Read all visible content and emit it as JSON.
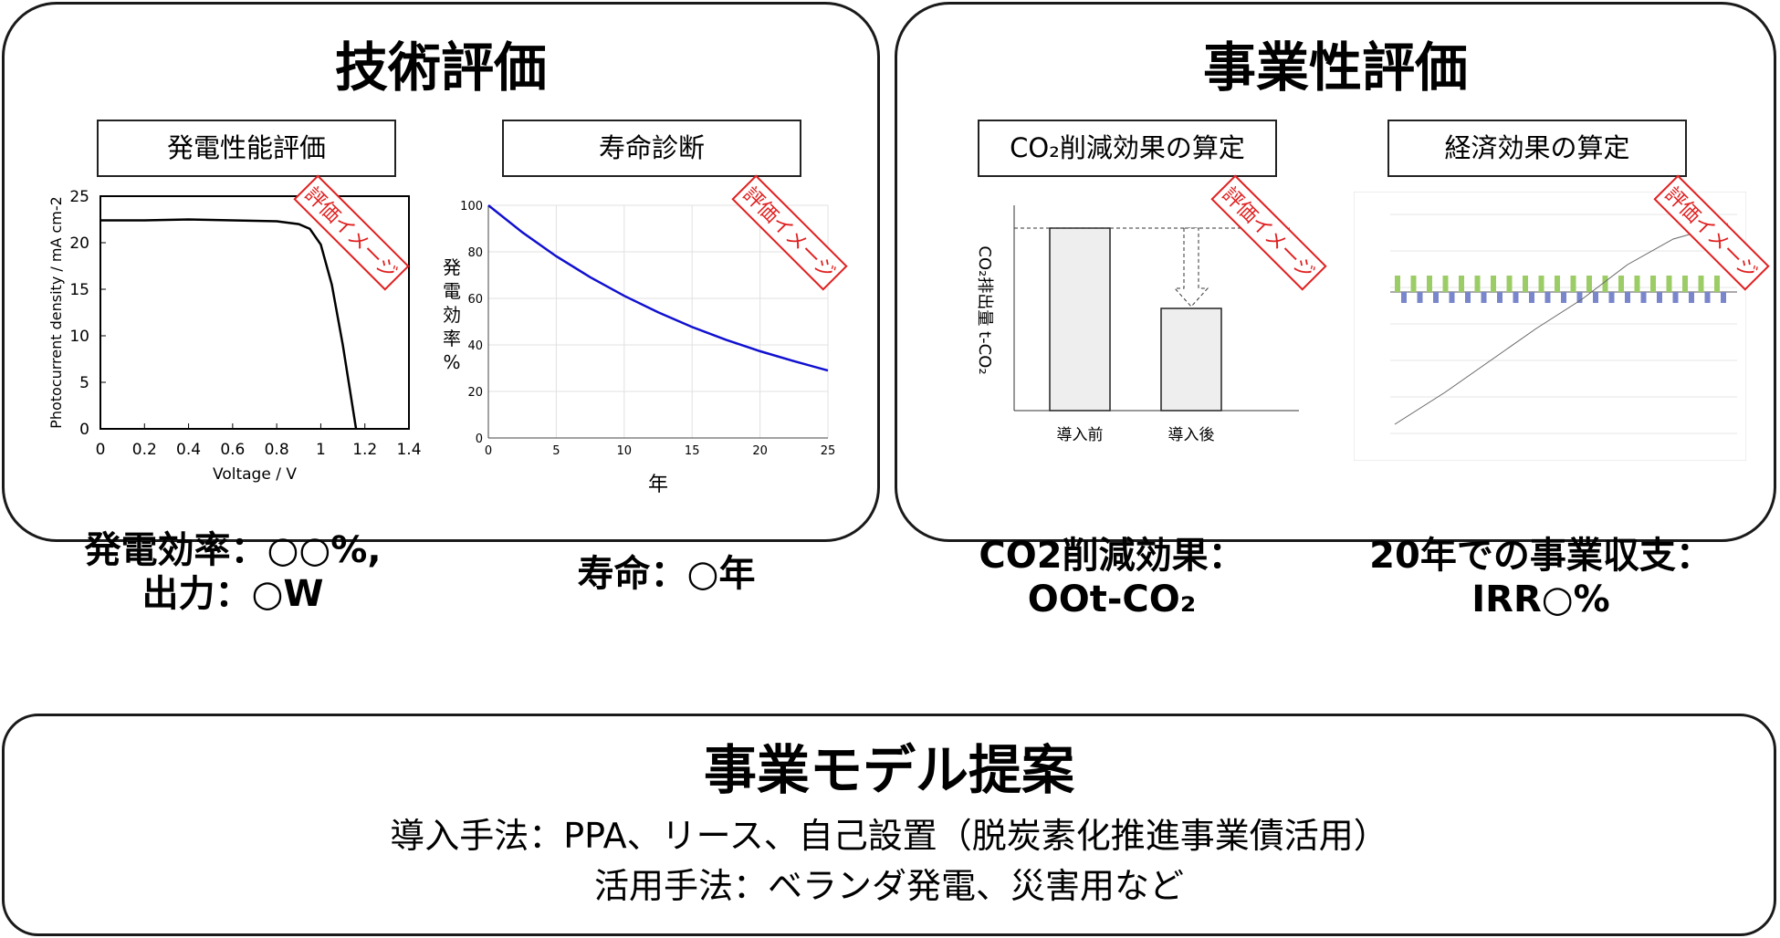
{
  "tech_panel": {
    "title": "技術評価",
    "perf_box": "発電性能評価",
    "life_box": "寿命診断",
    "perf_result_line1": "発電効率：○○%,",
    "perf_result_line2": "出力：○W",
    "life_result": "寿命：○年"
  },
  "biz_panel": {
    "title": "事業性評価",
    "co2_box": "CO₂削減効果の算定",
    "econ_box": "経済効果の算定",
    "co2_result_line1": "CO2削減効果：",
    "co2_result_line2": "OOt-CO₂",
    "econ_result_line1": "20年での事業収支：",
    "econ_result_line2": "IRR○%"
  },
  "stamp_label": "評価イメージ",
  "model_panel": {
    "title": "事業モデル提案",
    "line1": "導入手法：PPA、リース、自己設置（脱炭素化推進事業債活用）",
    "line2": "活用手法：ベランダ発電、災害用など"
  },
  "chart_data": [
    {
      "type": "line",
      "title": "",
      "xlabel": "Voltage / V",
      "ylabel": "Photocurrent density / mA cm-2",
      "xlim": [
        0,
        1.4
      ],
      "ylim": [
        0,
        25
      ],
      "x_ticks": [
        "0",
        "0.2",
        "0.4",
        "0.6",
        "0.8",
        "1",
        "1.2",
        "1.4"
      ],
      "y_ticks": [
        "0",
        "5",
        "10",
        "15",
        "20",
        "25"
      ],
      "series": [
        {
          "x": [
            0,
            0.2,
            0.4,
            0.6,
            0.8,
            0.9,
            0.95,
            1.0,
            1.05,
            1.1,
            1.13,
            1.15,
            1.16
          ],
          "y": [
            22.4,
            22.4,
            22.5,
            22.4,
            22.3,
            22.0,
            21.5,
            19.8,
            15.5,
            9.0,
            4.5,
            1.5,
            0
          ]
        }
      ],
      "color": "#000000"
    },
    {
      "type": "line",
      "title": "",
      "xlabel": "年",
      "ylabel": "発電効率 %",
      "xlim": [
        0,
        25
      ],
      "ylim": [
        0,
        100
      ],
      "x_ticks": [
        "0",
        "5",
        "10",
        "15",
        "20",
        "25"
      ],
      "y_ticks": [
        "0",
        "20",
        "40",
        "60",
        "80",
        "100"
      ],
      "grid": true,
      "series": [
        {
          "x": [
            0,
            2.5,
            5,
            7.5,
            10,
            12.5,
            15,
            17.5,
            20,
            22.5,
            25
          ],
          "y": [
            100,
            88.4,
            78.1,
            69.1,
            61.1,
            54.0,
            47.7,
            42.2,
            37.3,
            33.0,
            29.0
          ]
        }
      ],
      "color": "#1010d0"
    },
    {
      "type": "bar",
      "title": "",
      "xlabel": "",
      "ylabel": "CO₂排出量 t-CO₂",
      "categories": [
        "導入前",
        "導入後"
      ],
      "values": [
        100,
        56
      ],
      "ylim": [
        0,
        110
      ],
      "color": "#eeeeee"
    }
  ]
}
